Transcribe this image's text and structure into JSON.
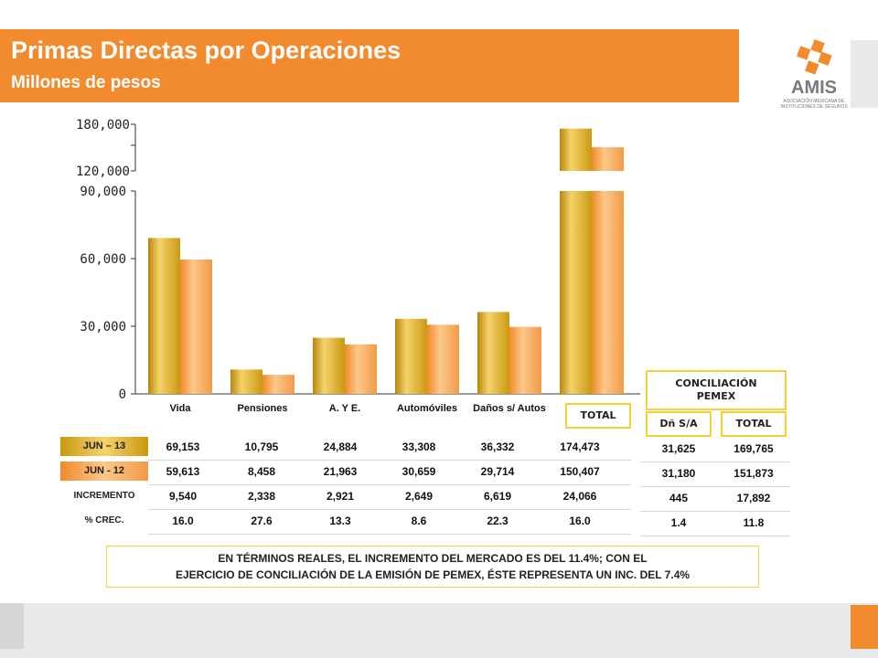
{
  "header": {
    "title": "Primas Directas por Operaciones",
    "subtitle": "Millones de pesos"
  },
  "logo": {
    "text": "AMIS",
    "tagline_line1": "ASOCIACIÓN MEXICANA DE",
    "tagline_line2": "INSTITUCIONES DE SEGUROS",
    "color": "#f28a2e"
  },
  "chart_data": {
    "type": "bar",
    "categories": [
      "Vida",
      "Pensiones",
      "A. Y E.",
      "Automóviles",
      "Daños s/ Autos",
      "TOTAL"
    ],
    "series": [
      {
        "name": "JUN – 13",
        "values": [
          69153,
          10795,
          24884,
          33308,
          36332,
          174473
        ],
        "color": "#d4a017"
      },
      {
        "name": "JUN -  12",
        "values": [
          59613,
          8458,
          21963,
          30659,
          29714,
          150407
        ],
        "color": "#f7a24a"
      }
    ],
    "y_ticks_lower": [
      "0",
      "30,000",
      "60,000",
      "90,000"
    ],
    "y_ticks_upper": [
      "120,000",
      "180,000"
    ],
    "ylim_lower": [
      0,
      90000
    ],
    "ylim_upper": [
      120000,
      180000
    ],
    "axis_break": true
  },
  "table": {
    "rows": [
      {
        "label": "JUN – 13",
        "values": [
          "69,153",
          "10,795",
          "24,884",
          "33,308",
          "36,332",
          "174,473"
        ]
      },
      {
        "label": "JUN -  12",
        "values": [
          "59,613",
          "8,458",
          "21,963",
          "30,659",
          "29,714",
          "150,407"
        ]
      },
      {
        "label": "INCREMENTO",
        "values": [
          "9,540",
          "2,338",
          "2,921",
          "2,649",
          "6,619",
          "24,066"
        ]
      },
      {
        "label": "% CREC.",
        "values": [
          "16.0",
          "27.6",
          "13.3",
          "8.6",
          "22.3",
          "16.0"
        ]
      }
    ]
  },
  "conciliacion": {
    "title_line1": "CONCILIACIÓN",
    "title_line2": "PEMEX",
    "col1_header": "Dñ S/A",
    "col2_header": "TOTAL",
    "rows": [
      [
        "31,625",
        "169,765"
      ],
      [
        "31,180",
        "151,873"
      ],
      [
        "445",
        "17,892"
      ],
      [
        "1.4",
        "11.8"
      ]
    ]
  },
  "note": {
    "line1": "EN TÉRMINOS  REALES, EL INCREMENTO  DEL  MERCADO  ES  DEL  11.4%;  CON EL",
    "line2": "EJERCICIO DE CONCILIACIÓN DE LA EMISIÓN DE PEMEX, ÉSTE REPRESENTA  UN INC. DEL 7.4%"
  }
}
